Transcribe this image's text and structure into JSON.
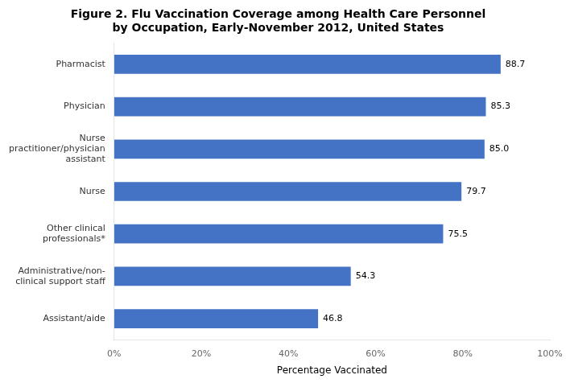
{
  "chart_data": {
    "type": "bar",
    "orientation": "horizontal",
    "title": "Figure 2. Flu Vaccination Coverage among Health Care Personnel\nby Occupation, Early-November 2012, United States",
    "xlabel": "Percentage Vaccinated",
    "categories": [
      "Assistant/aide",
      "Administrative/non-\nclinical support staff",
      "Other clinical\nprofessionals*",
      "Nurse",
      "Nurse\npractitioner/physician\nassistant",
      "Physician",
      "Pharmacist"
    ],
    "values": [
      46.8,
      54.3,
      75.5,
      79.7,
      85.0,
      85.3,
      88.7
    ],
    "value_labels": [
      "46.8",
      "54.3",
      "75.5",
      "79.7",
      "85.0",
      "85.3",
      "88.7"
    ],
    "data_labels": true,
    "color": "#4472C4",
    "xlim": [
      0,
      100
    ],
    "xticks": [
      {
        "value": 0,
        "label": "0%"
      },
      {
        "value": 20,
        "label": "20%"
      },
      {
        "value": 40,
        "label": "40%"
      },
      {
        "value": 60,
        "label": "60%"
      },
      {
        "value": 80,
        "label": "80%"
      },
      {
        "value": 100,
        "label": "100%"
      }
    ],
    "grid": false
  }
}
